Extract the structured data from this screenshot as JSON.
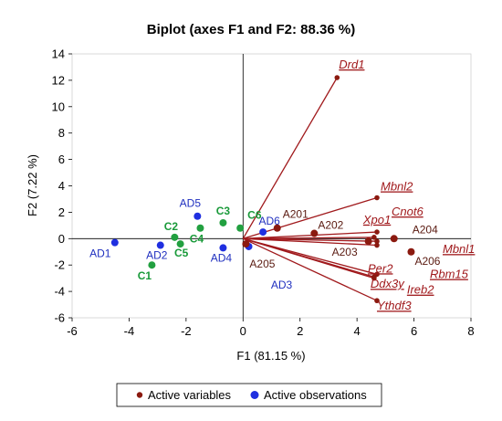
{
  "chart_data": {
    "type": "scatter",
    "title": "Biplot (axes F1 and F2: 88.36 %)",
    "xlabel": "F1 (81.15 %)",
    "ylabel": "F2 (7.22 %)",
    "xlim": [
      -6,
      8
    ],
    "ylim": [
      -6,
      14
    ],
    "xticks": [
      "-6",
      "-4",
      "-2",
      "0",
      "2",
      "4",
      "6",
      "8"
    ],
    "yticks": [
      "-6",
      "-4",
      "-2",
      "0",
      "2",
      "4",
      "6",
      "8",
      "10",
      "12",
      "14"
    ],
    "legend": {
      "position": "bottom",
      "entries": [
        {
          "label": "Active variables",
          "color": "#8b1a10"
        },
        {
          "label": "Active observations",
          "color": "#1f2fe0"
        }
      ]
    },
    "colors": {
      "variable_line": "#a0191c",
      "variable_point": "#8b1a10",
      "observation_blue": "#1f2fe0",
      "observation_green": "#22a040"
    },
    "variables": [
      {
        "name": "Drd1",
        "x": 3.3,
        "y": 12.2
      },
      {
        "name": "Mbnl2",
        "x": 4.7,
        "y": 3.1
      },
      {
        "name": "Cnot6",
        "x": 4.7,
        "y": 0.5
      },
      {
        "name": "Xpo1",
        "x": 4.6,
        "y": 0.1
      },
      {
        "name": "Mbnl1",
        "x": 4.7,
        "y": -0.2
      },
      {
        "name": "Rbm15",
        "x": 4.7,
        "y": -0.5
      },
      {
        "name": "Per2",
        "x": 4.7,
        "y": -2.7
      },
      {
        "name": "Ddx3y",
        "x": 4.6,
        "y": -2.9
      },
      {
        "name": "Ireb2",
        "x": 4.6,
        "y": -3.0
      },
      {
        "name": "Ythdf3",
        "x": 4.7,
        "y": -4.7
      }
    ],
    "observations": [
      {
        "name": "AD1",
        "x": -4.5,
        "y": -0.3,
        "group": "AD"
      },
      {
        "name": "AD2",
        "x": -2.9,
        "y": -0.5,
        "group": "AD"
      },
      {
        "name": "AD3",
        "x": 0.2,
        "y": -0.6,
        "group": "AD"
      },
      {
        "name": "AD4",
        "x": -0.7,
        "y": -0.7,
        "group": "AD"
      },
      {
        "name": "AD5",
        "x": -1.6,
        "y": 1.7,
        "group": "AD"
      },
      {
        "name": "AD6",
        "x": 0.7,
        "y": 0.5,
        "group": "AD"
      },
      {
        "name": "C1",
        "x": -3.2,
        "y": -2.0,
        "group": "C"
      },
      {
        "name": "C2",
        "x": -2.4,
        "y": 0.1,
        "group": "C"
      },
      {
        "name": "C3",
        "x": -0.7,
        "y": 1.2,
        "group": "C"
      },
      {
        "name": "C4",
        "x": -1.5,
        "y": 0.8,
        "group": "C"
      },
      {
        "name": "C5",
        "x": -2.2,
        "y": -0.4,
        "group": "C"
      },
      {
        "name": "C6",
        "x": -0.1,
        "y": 0.8,
        "group": "C"
      },
      {
        "name": "A201",
        "x": 1.2,
        "y": 0.8,
        "group": "A"
      },
      {
        "name": "A202",
        "x": 2.5,
        "y": 0.4,
        "group": "A"
      },
      {
        "name": "A203",
        "x": 4.4,
        "y": -0.2,
        "group": "A"
      },
      {
        "name": "A204",
        "x": 5.3,
        "y": 0.0,
        "group": "A"
      },
      {
        "name": "A205",
        "x": 0.1,
        "y": -0.4,
        "group": "A"
      },
      {
        "name": "A206",
        "x": 5.9,
        "y": -1.0,
        "group": "A"
      }
    ]
  }
}
